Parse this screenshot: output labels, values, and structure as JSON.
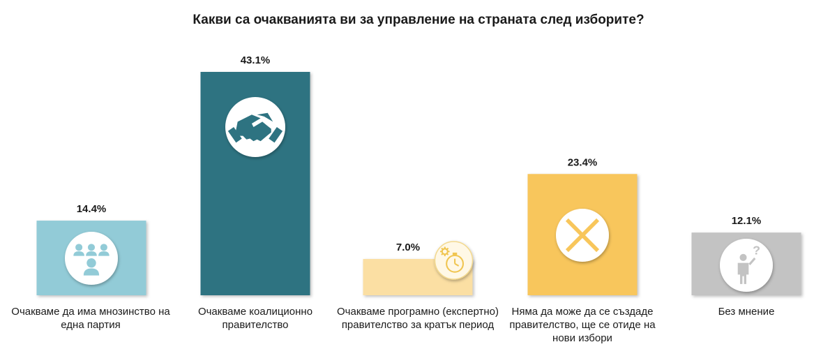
{
  "chart_data": {
    "type": "bar",
    "title": "Какви са очакванията ви за управление на страната след изборите?",
    "categories": [
      [
        "Очакваме да има мнозинство на",
        "една партия"
      ],
      [
        "Очакваме коалиционно",
        "правителство"
      ],
      [
        "Очакваме програмно (експертно)",
        "правителство за кратък период"
      ],
      [
        "Няма да може да се създаде",
        "правителство, ще се отиде на",
        "нови избори"
      ],
      [
        "Без мнение"
      ]
    ],
    "values": [
      14.4,
      43.1,
      7.0,
      23.4,
      12.1
    ],
    "value_labels": [
      "14.4%",
      "43.1%",
      "7.0%",
      "23.4%",
      "12.1%"
    ],
    "colors": [
      "#92cbd7",
      "#2e7381",
      "#fbdfa3",
      "#f8c65b",
      "#c3c3c3"
    ],
    "icons": [
      "group-leader-icon",
      "handshake-icon",
      "stopwatch-gear-icon",
      "cross-icon",
      "question-person-icon"
    ],
    "ylim": [
      0,
      43.1
    ],
    "grid": false,
    "legend": "none"
  }
}
